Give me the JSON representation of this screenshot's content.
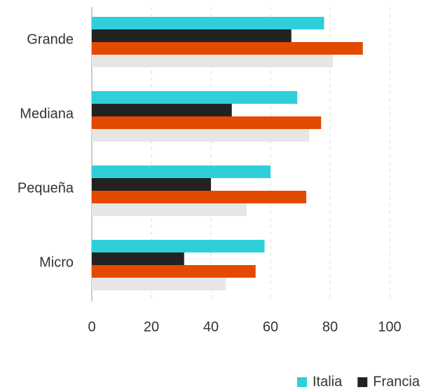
{
  "chart_data": {
    "type": "bar",
    "orientation": "horizontal",
    "categories": [
      "Grande",
      "Mediana",
      "Pequeña",
      "Micro"
    ],
    "series": [
      {
        "name": "Italia",
        "color": "#2ecfd8",
        "values": [
          78,
          69,
          60,
          58
        ]
      },
      {
        "name": "Francia",
        "color": "#222222",
        "values": [
          67,
          47,
          40,
          31
        ]
      },
      {
        "color": "#e34a00",
        "values": [
          91,
          77,
          72,
          55
        ]
      },
      {
        "color": "#e6e6e6",
        "values": [
          81,
          73,
          52,
          45
        ]
      }
    ],
    "xlim": [
      0,
      100
    ],
    "xticks": [
      0,
      20,
      40,
      60,
      80,
      100
    ],
    "grid": true,
    "legend": "bottom-right"
  }
}
